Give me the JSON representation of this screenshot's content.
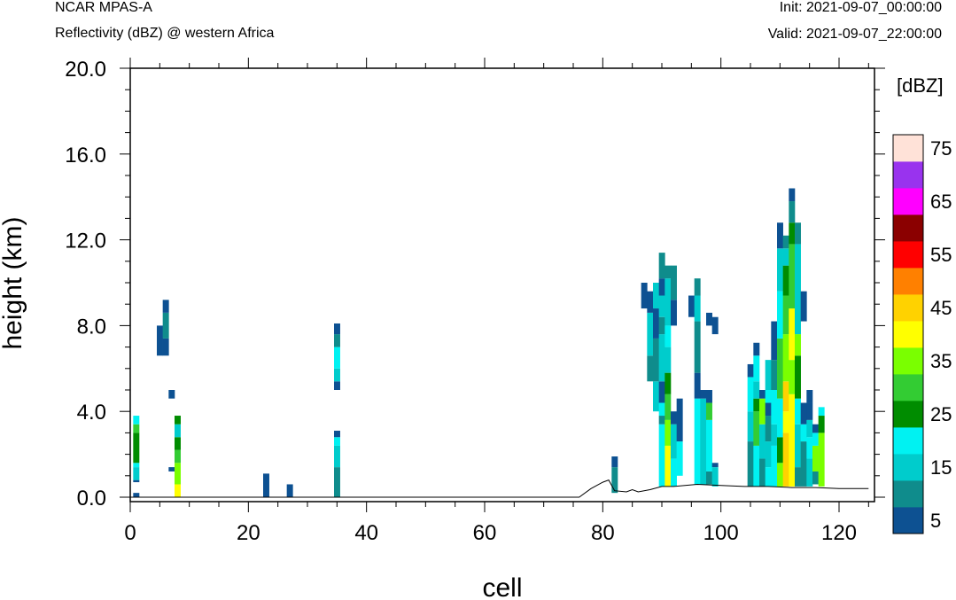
{
  "header": {
    "model": "NCAR MPAS-A",
    "field": "Reflectivity (dBZ) @ western Africa",
    "init": "Init: 2021-09-07_00:00:00",
    "valid": "Valid: 2021-09-07_22:00:00"
  },
  "chart_data": {
    "type": "heatmap",
    "title": "Reflectivity (dBZ) @ western Africa",
    "xlabel": "cell",
    "ylabel": "height (km)",
    "xlim": [
      0,
      126
    ],
    "ylim": [
      0,
      20
    ],
    "x_ticks": [
      0,
      20,
      40,
      60,
      80,
      100,
      120
    ],
    "x_tick_labels": [
      "0",
      "20",
      "40",
      "60",
      "80",
      "100",
      "120"
    ],
    "y_ticks": [
      0,
      4,
      8,
      12,
      16,
      20
    ],
    "y_tick_labels": [
      "0.0",
      "4.0",
      "8.0",
      "12.0",
      "16.0",
      "20.0"
    ],
    "colorbar": {
      "unit_label": "[dBZ]",
      "levels": [
        5,
        10,
        15,
        20,
        25,
        30,
        35,
        40,
        45,
        50,
        55,
        60,
        65,
        70,
        75
      ],
      "labels": [
        "5",
        "15",
        "25",
        "35",
        "45",
        "55",
        "65",
        "75"
      ],
      "colors": [
        "#0d5192",
        "#0f8c8c",
        "#00cccc",
        "#00f2f2",
        "#008c00",
        "#33cc33",
        "#7aff00",
        "#ffff00",
        "#ffd200",
        "#ff8000",
        "#ff0000",
        "#8b0000",
        "#ff00ff",
        "#9933ee",
        "#ffe2d8"
      ]
    },
    "terrain": [
      [
        0,
        0
      ],
      [
        76,
        0
      ],
      [
        78,
        0.4
      ],
      [
        80,
        0.7
      ],
      [
        81,
        0.8
      ],
      [
        82,
        0.3
      ],
      [
        84,
        0.25
      ],
      [
        85,
        0.35
      ],
      [
        86,
        0.25
      ],
      [
        88,
        0.35
      ],
      [
        90,
        0.5
      ],
      [
        92,
        0.5
      ],
      [
        96,
        0.6
      ],
      [
        100,
        0.55
      ],
      [
        104,
        0.5
      ],
      [
        108,
        0.5
      ],
      [
        112,
        0.45
      ],
      [
        116,
        0.45
      ],
      [
        120,
        0.4
      ],
      [
        125,
        0.4
      ]
    ],
    "columns": [
      {
        "x": 1,
        "segments": [
          [
            0,
            0.2,
            5
          ],
          [
            0.7,
            0.8,
            5
          ],
          [
            0.8,
            1.4,
            15
          ],
          [
            1.4,
            1.6,
            20
          ],
          [
            1.6,
            3.0,
            25
          ],
          [
            3.0,
            3.4,
            30
          ],
          [
            3.4,
            3.8,
            20
          ]
        ]
      },
      {
        "x": 5,
        "segments": [
          [
            6.6,
            8.0,
            5
          ]
        ]
      },
      {
        "x": 6,
        "segments": [
          [
            6.6,
            7.4,
            5
          ],
          [
            7.4,
            8.6,
            10
          ],
          [
            8.6,
            9.2,
            5
          ]
        ]
      },
      {
        "x": 7,
        "segments": [
          [
            1.2,
            1.4,
            5
          ],
          [
            4.6,
            5.0,
            5
          ]
        ]
      },
      {
        "x": 8,
        "segments": [
          [
            0,
            0.6,
            40
          ],
          [
            0.6,
            1.6,
            35
          ],
          [
            1.6,
            2.2,
            30
          ],
          [
            2.2,
            2.8,
            25
          ],
          [
            2.8,
            3.4,
            15
          ],
          [
            3.4,
            3.8,
            25
          ]
        ]
      },
      {
        "x": 23,
        "segments": [
          [
            0,
            1.1,
            5
          ]
        ]
      },
      {
        "x": 27,
        "segments": [
          [
            0,
            0.6,
            5
          ]
        ]
      },
      {
        "x": 35,
        "segments": [
          [
            0,
            1.4,
            10
          ],
          [
            1.4,
            2.4,
            15
          ],
          [
            2.4,
            2.8,
            20
          ],
          [
            2.8,
            3.1,
            5
          ],
          [
            5.0,
            5.4,
            5
          ],
          [
            5.4,
            6.0,
            15
          ],
          [
            6.0,
            7.0,
            20
          ],
          [
            7.0,
            7.6,
            10
          ],
          [
            7.6,
            8.1,
            5
          ]
        ]
      },
      {
        "x": 82,
        "segments": [
          [
            0.2,
            1.4,
            10
          ],
          [
            1.4,
            1.9,
            5
          ]
        ]
      },
      {
        "x": 87,
        "segments": [
          [
            8.8,
            10.0,
            5
          ]
        ]
      },
      {
        "x": 88,
        "segments": [
          [
            5.4,
            6.6,
            10
          ],
          [
            6.6,
            8.6,
            15
          ],
          [
            8.6,
            9.6,
            5
          ]
        ]
      },
      {
        "x": 89,
        "segments": [
          [
            4.0,
            5.4,
            15
          ],
          [
            5.4,
            7.4,
            10
          ],
          [
            7.4,
            8.8,
            5
          ],
          [
            8.8,
            10.0,
            15
          ]
        ]
      },
      {
        "x": 90,
        "segments": [
          [
            0.5,
            3.4,
            20
          ],
          [
            3.4,
            3.8,
            10
          ],
          [
            3.8,
            4.4,
            20
          ],
          [
            4.4,
            5.4,
            5
          ],
          [
            5.4,
            7.6,
            15
          ],
          [
            7.6,
            8.4,
            10
          ],
          [
            8.4,
            9.4,
            15
          ],
          [
            9.4,
            10.2,
            5
          ],
          [
            10.2,
            11.4,
            10
          ]
        ]
      },
      {
        "x": 91,
        "segments": [
          [
            0.5,
            2.4,
            40
          ],
          [
            2.4,
            3.6,
            35
          ],
          [
            3.6,
            4.8,
            30
          ],
          [
            4.8,
            5.8,
            25
          ],
          [
            5.8,
            7.0,
            15
          ],
          [
            7.0,
            8.0,
            20
          ],
          [
            8.0,
            10.2,
            15
          ],
          [
            10.2,
            10.8,
            10
          ]
        ]
      },
      {
        "x": 92,
        "segments": [
          [
            0.5,
            1.8,
            20
          ],
          [
            1.8,
            3.4,
            15
          ],
          [
            3.4,
            4.0,
            5
          ],
          [
            8.0,
            9.2,
            5
          ],
          [
            9.2,
            10.8,
            10
          ]
        ]
      },
      {
        "x": 93,
        "segments": [
          [
            1.0,
            2.6,
            20
          ],
          [
            2.6,
            4.6,
            5
          ]
        ]
      },
      {
        "x": 95,
        "segments": [
          [
            8.4,
            9.4,
            5
          ]
        ]
      },
      {
        "x": 96,
        "segments": [
          [
            0.6,
            4.6,
            20
          ],
          [
            4.6,
            5.8,
            5
          ],
          [
            5.8,
            8.2,
            10
          ],
          [
            8.2,
            9.4,
            15
          ],
          [
            9.4,
            10.2,
            10
          ]
        ]
      },
      {
        "x": 97,
        "segments": [
          [
            0.6,
            4.6,
            15
          ],
          [
            4.6,
            5.0,
            5
          ]
        ]
      },
      {
        "x": 98,
        "segments": [
          [
            0.6,
            1.2,
            10
          ],
          [
            1.2,
            3.6,
            20
          ],
          [
            3.6,
            4.4,
            30
          ],
          [
            4.4,
            5.0,
            5
          ],
          [
            8.0,
            8.6,
            5
          ]
        ]
      },
      {
        "x": 99,
        "segments": [
          [
            0.5,
            1.4,
            15
          ],
          [
            1.4,
            1.6,
            5
          ],
          [
            7.6,
            8.4,
            5
          ]
        ]
      },
      {
        "x": 105,
        "segments": [
          [
            0.5,
            2.6,
            10
          ],
          [
            2.6,
            4.0,
            15
          ],
          [
            4.0,
            5.6,
            20
          ],
          [
            5.6,
            6.2,
            5
          ]
        ]
      },
      {
        "x": 106,
        "segments": [
          [
            0.5,
            2.4,
            20
          ],
          [
            2.4,
            4.0,
            30
          ],
          [
            4.0,
            4.6,
            25
          ],
          [
            4.6,
            5.4,
            15
          ],
          [
            5.4,
            6.6,
            20
          ],
          [
            6.6,
            7.2,
            5
          ]
        ]
      },
      {
        "x": 107,
        "segments": [
          [
            0.5,
            1.8,
            10
          ],
          [
            1.8,
            3.4,
            15
          ],
          [
            3.4,
            4.6,
            35
          ],
          [
            4.6,
            5.0,
            5
          ]
        ]
      },
      {
        "x": 108,
        "segments": [
          [
            0.5,
            1.4,
            20
          ],
          [
            1.4,
            2.6,
            15
          ],
          [
            2.6,
            3.8,
            10
          ],
          [
            3.8,
            4.4,
            5
          ],
          [
            4.4,
            5.0,
            20
          ],
          [
            5.0,
            6.4,
            15
          ]
        ]
      },
      {
        "x": 109,
        "segments": [
          [
            0.5,
            2.4,
            20
          ],
          [
            2.4,
            3.4,
            15
          ],
          [
            3.4,
            5.0,
            20
          ],
          [
            5.0,
            6.4,
            10
          ],
          [
            6.4,
            8.2,
            5
          ]
        ]
      },
      {
        "x": 110,
        "segments": [
          [
            0.5,
            1.6,
            35
          ],
          [
            1.6,
            2.8,
            25
          ],
          [
            2.8,
            4.6,
            20
          ],
          [
            4.6,
            7.4,
            30
          ],
          [
            7.4,
            9.6,
            20
          ],
          [
            9.6,
            11.6,
            15
          ],
          [
            11.6,
            12.8,
            5
          ]
        ]
      },
      {
        "x": 111,
        "segments": [
          [
            0.5,
            3.0,
            45
          ],
          [
            3.0,
            4.0,
            40
          ],
          [
            4.0,
            5.4,
            45
          ],
          [
            5.4,
            7.6,
            35
          ],
          [
            7.6,
            9.4,
            30
          ],
          [
            9.4,
            10.8,
            25
          ],
          [
            10.8,
            11.6,
            15
          ],
          [
            11.6,
            12.2,
            10
          ]
        ]
      },
      {
        "x": 112,
        "segments": [
          [
            0.5,
            4.8,
            40
          ],
          [
            4.8,
            6.4,
            35
          ],
          [
            6.4,
            8.8,
            40
          ],
          [
            8.8,
            11.8,
            30
          ],
          [
            11.8,
            12.8,
            25
          ],
          [
            12.8,
            13.8,
            10
          ],
          [
            13.8,
            14.4,
            5
          ]
        ]
      },
      {
        "x": 113,
        "segments": [
          [
            0.5,
            1.4,
            10
          ],
          [
            1.4,
            3.4,
            15
          ],
          [
            3.4,
            4.6,
            20
          ],
          [
            4.6,
            6.6,
            25
          ],
          [
            6.6,
            7.6,
            35
          ],
          [
            7.6,
            11.8,
            15
          ],
          [
            11.8,
            12.8,
            10
          ]
        ]
      },
      {
        "x": 114,
        "segments": [
          [
            0.5,
            2.6,
            10
          ],
          [
            2.6,
            3.4,
            20
          ],
          [
            3.4,
            4.4,
            5
          ],
          [
            8.2,
            9.6,
            5
          ]
        ]
      },
      {
        "x": 115,
        "segments": [
          [
            0.5,
            1.8,
            15
          ],
          [
            1.8,
            2.8,
            20
          ],
          [
            2.8,
            3.6,
            15
          ],
          [
            3.6,
            4.4,
            5
          ],
          [
            4.4,
            5.0,
            5
          ]
        ]
      },
      {
        "x": 116,
        "segments": [
          [
            0.6,
            1.2,
            10
          ],
          [
            1.2,
            2.4,
            35
          ],
          [
            2.4,
            3.0,
            20
          ],
          [
            3.0,
            3.4,
            5
          ]
        ]
      },
      {
        "x": 117,
        "segments": [
          [
            0.5,
            3.0,
            35
          ],
          [
            3.0,
            3.8,
            25
          ],
          [
            3.8,
            4.2,
            20
          ]
        ]
      }
    ]
  }
}
